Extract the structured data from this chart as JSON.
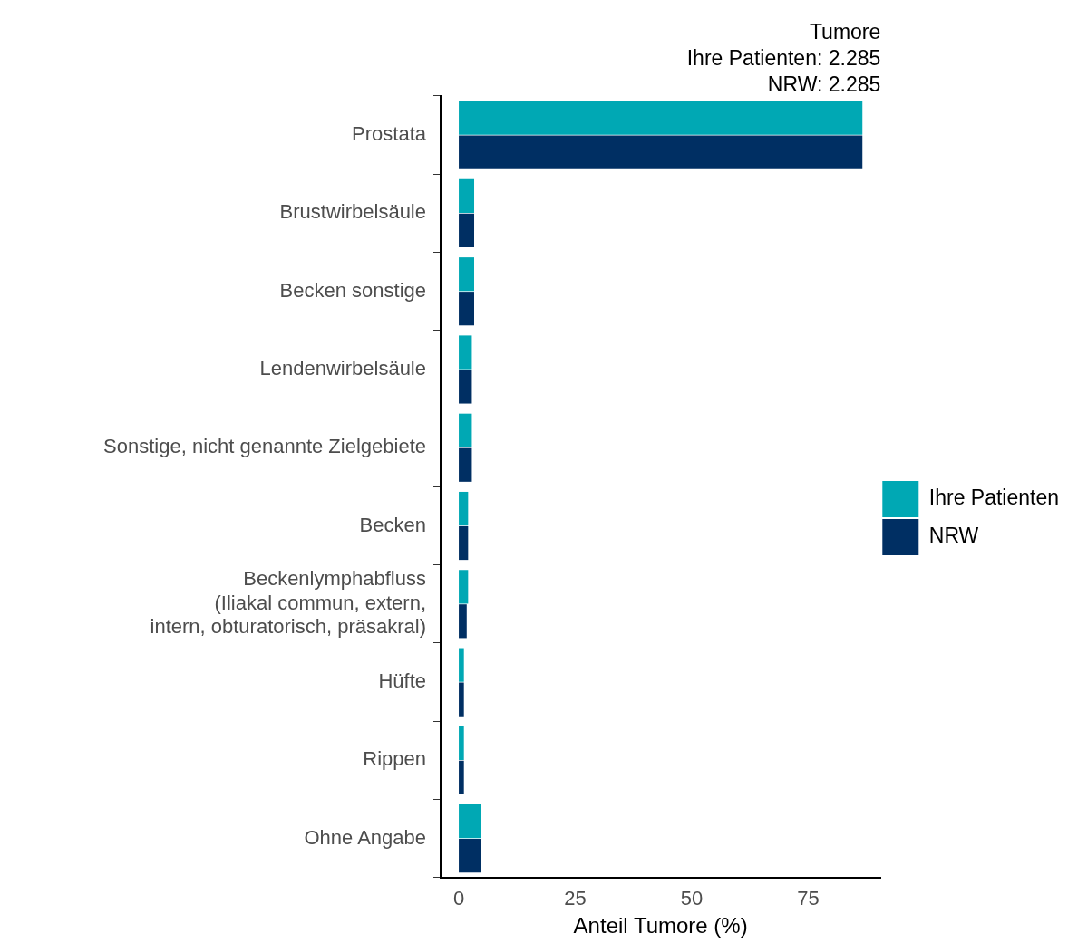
{
  "chart_data": {
    "type": "bar",
    "orientation": "horizontal",
    "title": "Tumore\nIhre Patienten: 2.285\nNRW: 2.285",
    "xlabel": "Anteil Tumore (%)",
    "categories": [
      "Prostata",
      "Brustwirbelsäule",
      "Becken sonstige",
      "Lendenwirbelsäule",
      "Sonstige, nicht genannte Zielgebiete",
      "Becken",
      "Beckenlymphabfluss\n(Iliakal commun, extern,\nintern, obturatorisch, präsakral)",
      "Hüfte",
      "Rippen",
      "Ohne Angabe"
    ],
    "series": [
      {
        "name": "Ihre Patienten",
        "color": "#00a8b4",
        "values": [
          86.6,
          3.3,
          3.3,
          2.8,
          2.8,
          2.0,
          2.0,
          1.1,
          1.1,
          4.8
        ]
      },
      {
        "name": "NRW",
        "color": "#002f63",
        "values": [
          86.6,
          3.3,
          3.3,
          2.8,
          2.8,
          2.0,
          1.7,
          1.1,
          1.1,
          4.8
        ]
      }
    ],
    "xlim": [
      -3.9,
      90.5
    ],
    "xticks": [
      0,
      25,
      50,
      75
    ],
    "grid": false,
    "legend": "right"
  }
}
